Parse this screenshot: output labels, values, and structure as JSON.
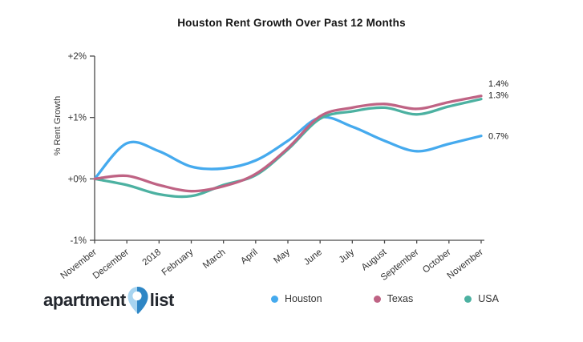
{
  "title": "Houston Rent Growth Over Past 12 Months",
  "y_axis_title": "% Rent Growth",
  "chart_data": {
    "type": "line",
    "categories": [
      "November",
      "December",
      "2018",
      "February",
      "March",
      "April",
      "May",
      "June",
      "July",
      "August",
      "September",
      "October",
      "November"
    ],
    "series": [
      {
        "name": "Houston",
        "color": "#45aaee",
        "end_label": "0.7%",
        "values": [
          0.0,
          0.58,
          0.45,
          0.2,
          0.17,
          0.3,
          0.62,
          1.0,
          0.85,
          0.62,
          0.45,
          0.57,
          0.7
        ]
      },
      {
        "name": "Texas",
        "color": "#bf6384",
        "end_label": "1.4%",
        "values": [
          0.0,
          0.05,
          -0.1,
          -0.2,
          -0.12,
          0.08,
          0.5,
          1.02,
          1.16,
          1.22,
          1.14,
          1.25,
          1.35
        ]
      },
      {
        "name": "USA",
        "color": "#4cb1a1",
        "end_label": "1.3%",
        "values": [
          0.0,
          -0.1,
          -0.25,
          -0.28,
          -0.1,
          0.06,
          0.48,
          0.98,
          1.1,
          1.16,
          1.05,
          1.18,
          1.3
        ]
      }
    ],
    "title": "Houston Rent Growth Over Past 12 Months",
    "xlabel": "",
    "ylabel": "% Rent Growth",
    "ylim": [
      -1,
      2
    ],
    "y_ticks": [
      "+2%",
      "+1%",
      "+0%",
      "-1%"
    ],
    "y_tick_values": [
      2,
      1,
      0,
      -1
    ],
    "grid": false,
    "legend_position": "bottom"
  },
  "logo": {
    "word1": "apartment",
    "word2": "list"
  },
  "colors": {
    "axis": "#4a4a4a",
    "tick_text": "#333333",
    "end_label_text": "#1a1a1a",
    "logo_text": "#23272e",
    "pin_light": "#a7d4f0",
    "pin_dark": "#2e86c5"
  }
}
